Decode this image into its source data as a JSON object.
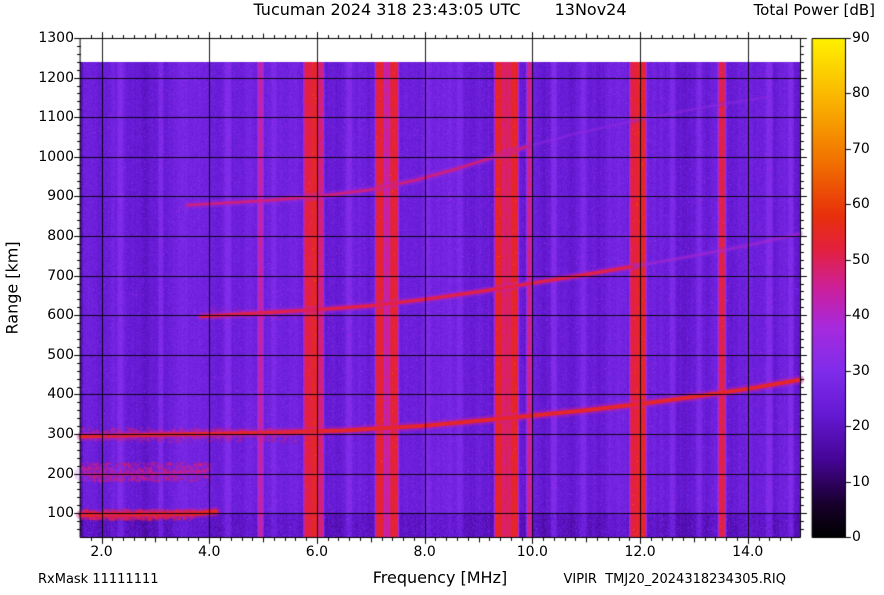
{
  "header": {
    "title": "Tucuman 2024 318 23:43:05 UTC",
    "date": "13Nov24",
    "colorbar_title": "Total Power [dB]"
  },
  "footer": {
    "rx_mask": "RxMask 11111111",
    "file_id": "VIPIR  TMJ20_2024318234305.RIQ"
  },
  "chart_data": {
    "type": "heatmap",
    "title": "Tucuman 2024 318 23:43:05 UTC  13Nov24",
    "xlabel": "Frequency [MHz]",
    "ylabel": "Range [km]",
    "xlim": [
      1.6,
      14.97
    ],
    "ylim": [
      40,
      1300
    ],
    "data_range_max_km": 1240,
    "grid": true,
    "x_ticks": [
      2,
      4,
      6,
      8,
      10,
      12,
      14
    ],
    "x_tick_labels": [
      "2.0",
      "4.0",
      "6.0",
      "8.0",
      "10.0",
      "12.0",
      "14.0"
    ],
    "y_ticks": [
      100,
      200,
      300,
      400,
      500,
      600,
      700,
      800,
      900,
      1000,
      1100,
      1200,
      1300
    ],
    "y_tick_labels": [
      "100",
      "200",
      "300",
      "400",
      "500",
      "600",
      "700",
      "800",
      "900",
      "1000",
      "1100",
      "1200",
      "1300"
    ],
    "background_db": 24.5,
    "colorbar": {
      "label": "Total Power [dB]",
      "min": 0,
      "max": 90,
      "ticks": [
        0,
        10,
        20,
        30,
        40,
        50,
        60,
        70,
        80,
        90
      ],
      "tick_labels": [
        "0",
        "10",
        "20",
        "30",
        "40",
        "50",
        "60",
        "70",
        "80",
        "90"
      ],
      "position": "right"
    },
    "colormap_stops": [
      [
        0,
        0,
        0,
        0
      ],
      [
        6,
        25,
        0,
        45
      ],
      [
        14,
        70,
        5,
        150
      ],
      [
        22,
        100,
        25,
        210
      ],
      [
        30,
        128,
        45,
        235
      ],
      [
        38,
        168,
        42,
        222
      ],
      [
        45,
        205,
        32,
        155
      ],
      [
        52,
        228,
        32,
        62
      ],
      [
        58,
        232,
        48,
        12
      ],
      [
        68,
        242,
        115,
        0
      ],
      [
        78,
        250,
        175,
        0
      ],
      [
        90,
        255,
        242,
        0
      ]
    ],
    "rfi_bands": [
      {
        "f": 4.95,
        "w": 0.05,
        "db": 45
      },
      {
        "f": 5.82,
        "w": 0.08,
        "db": 52
      },
      {
        "f": 5.95,
        "w": 0.12,
        "db": 54
      },
      {
        "f": 6.07,
        "w": 0.06,
        "db": 48
      },
      {
        "f": 7.17,
        "w": 0.12,
        "db": 53
      },
      {
        "f": 7.3,
        "w": 0.04,
        "db": 46
      },
      {
        "f": 7.43,
        "w": 0.12,
        "db": 53
      },
      {
        "f": 9.38,
        "w": 0.12,
        "db": 54
      },
      {
        "f": 9.52,
        "w": 0.07,
        "db": 50
      },
      {
        "f": 9.66,
        "w": 0.12,
        "db": 54
      },
      {
        "f": 9.94,
        "w": 0.05,
        "db": 46
      },
      {
        "f": 11.88,
        "w": 0.1,
        "db": 52
      },
      {
        "f": 12.02,
        "w": 0.14,
        "db": 54
      },
      {
        "f": 13.52,
        "w": 0.09,
        "db": 51
      },
      {
        "f": 2.35,
        "w": 0.06,
        "db": 30
      },
      {
        "f": 3.1,
        "w": 0.05,
        "db": 29
      },
      {
        "f": 4.35,
        "w": 0.07,
        "db": 30
      },
      {
        "f": 5.2,
        "w": 0.05,
        "db": 29
      },
      {
        "f": 6.6,
        "w": 0.06,
        "db": 30
      },
      {
        "f": 8.05,
        "w": 0.06,
        "db": 29
      },
      {
        "f": 8.65,
        "w": 0.05,
        "db": 29
      },
      {
        "f": 10.4,
        "w": 0.06,
        "db": 30
      },
      {
        "f": 10.95,
        "w": 0.05,
        "db": 29
      },
      {
        "f": 12.6,
        "w": 0.06,
        "db": 29
      },
      {
        "f": 13.1,
        "w": 0.05,
        "db": 29
      },
      {
        "f": 14.4,
        "w": 0.07,
        "db": 30
      },
      {
        "f": 14.8,
        "w": 0.05,
        "db": 30
      }
    ],
    "traces": [
      {
        "name": "e-region-echo",
        "db": 54,
        "width": 5,
        "halo": 10,
        "alpha": 1,
        "points": [
          [
            1.62,
            96
          ],
          [
            2.4,
            97
          ],
          [
            3.2,
            98
          ],
          [
            3.8,
            100
          ],
          [
            4.12,
            104
          ]
        ]
      },
      {
        "name": "es-scatter-band",
        "db": 47,
        "width": 3,
        "halo": 14,
        "alpha": 0.5,
        "points": [
          [
            1.62,
            198
          ],
          [
            2.4,
            197
          ],
          [
            3.2,
            201
          ],
          [
            3.95,
            207
          ]
        ]
      },
      {
        "name": "f-region-hop1",
        "db": 54,
        "width": 4,
        "halo": 9,
        "alpha": 1,
        "points": [
          [
            1.62,
            294
          ],
          [
            3.0,
            298
          ],
          [
            5.0,
            303
          ],
          [
            6.5,
            309
          ],
          [
            8.0,
            321
          ],
          [
            9.5,
            340
          ],
          [
            11.0,
            360
          ],
          [
            12.0,
            376
          ],
          [
            13.0,
            394
          ],
          [
            14.0,
            414
          ],
          [
            14.97,
            437
          ]
        ]
      },
      {
        "name": "f-region-hop2",
        "db": 51,
        "width": 3.5,
        "halo": 8,
        "alpha": 1,
        "points": [
          [
            3.85,
            597
          ],
          [
            5.0,
            606
          ],
          [
            6.0,
            614
          ],
          [
            7.0,
            624
          ],
          [
            8.0,
            640
          ],
          [
            9.0,
            659
          ],
          [
            10.0,
            681
          ],
          [
            11.0,
            703
          ],
          [
            11.9,
            724
          ]
        ]
      },
      {
        "name": "f-region-hop2-faint",
        "db": 40,
        "width": 3,
        "halo": 7,
        "alpha": 0.5,
        "points": [
          [
            11.9,
            724
          ],
          [
            13.0,
            750
          ],
          [
            14.0,
            776
          ],
          [
            14.97,
            806
          ]
        ]
      },
      {
        "name": "f-region-hop3",
        "db": 48,
        "width": 3,
        "halo": 8,
        "alpha": 0.85,
        "points": [
          [
            3.6,
            878
          ],
          [
            5.0,
            889
          ],
          [
            6.0,
            900
          ],
          [
            7.0,
            917
          ],
          [
            7.8,
            940
          ],
          [
            8.6,
            970
          ],
          [
            9.3,
            1000
          ],
          [
            9.95,
            1028
          ]
        ]
      },
      {
        "name": "f-region-hop3-faint",
        "db": 36,
        "width": 2.5,
        "halo": 6,
        "alpha": 0.4,
        "points": [
          [
            9.95,
            1028
          ],
          [
            10.8,
            1058
          ],
          [
            12.0,
            1094
          ],
          [
            13.3,
            1128
          ],
          [
            14.4,
            1152
          ]
        ]
      }
    ],
    "speckle_regions": [
      {
        "name": "e-region-spread",
        "f": [
          1.62,
          3.7
        ],
        "r": [
          86,
          112
        ],
        "count": 500,
        "db": [
          46,
          55
        ],
        "alpha": 0.7
      },
      {
        "name": "es-spread",
        "f": [
          1.62,
          4.0
        ],
        "r": [
          183,
          230
        ],
        "count": 700,
        "db": [
          42,
          52
        ],
        "alpha": 0.55
      },
      {
        "name": "f-hop1-spread",
        "f": [
          1.62,
          5.6
        ],
        "r": [
          283,
          318
        ],
        "count": 450,
        "db": [
          42,
          52
        ],
        "alpha": 0.5
      },
      {
        "name": "f-hop2-spread",
        "f": [
          4.0,
          6.2
        ],
        "r": [
          592,
          622
        ],
        "count": 120,
        "db": [
          40,
          48
        ],
        "alpha": 0.4
      }
    ]
  }
}
